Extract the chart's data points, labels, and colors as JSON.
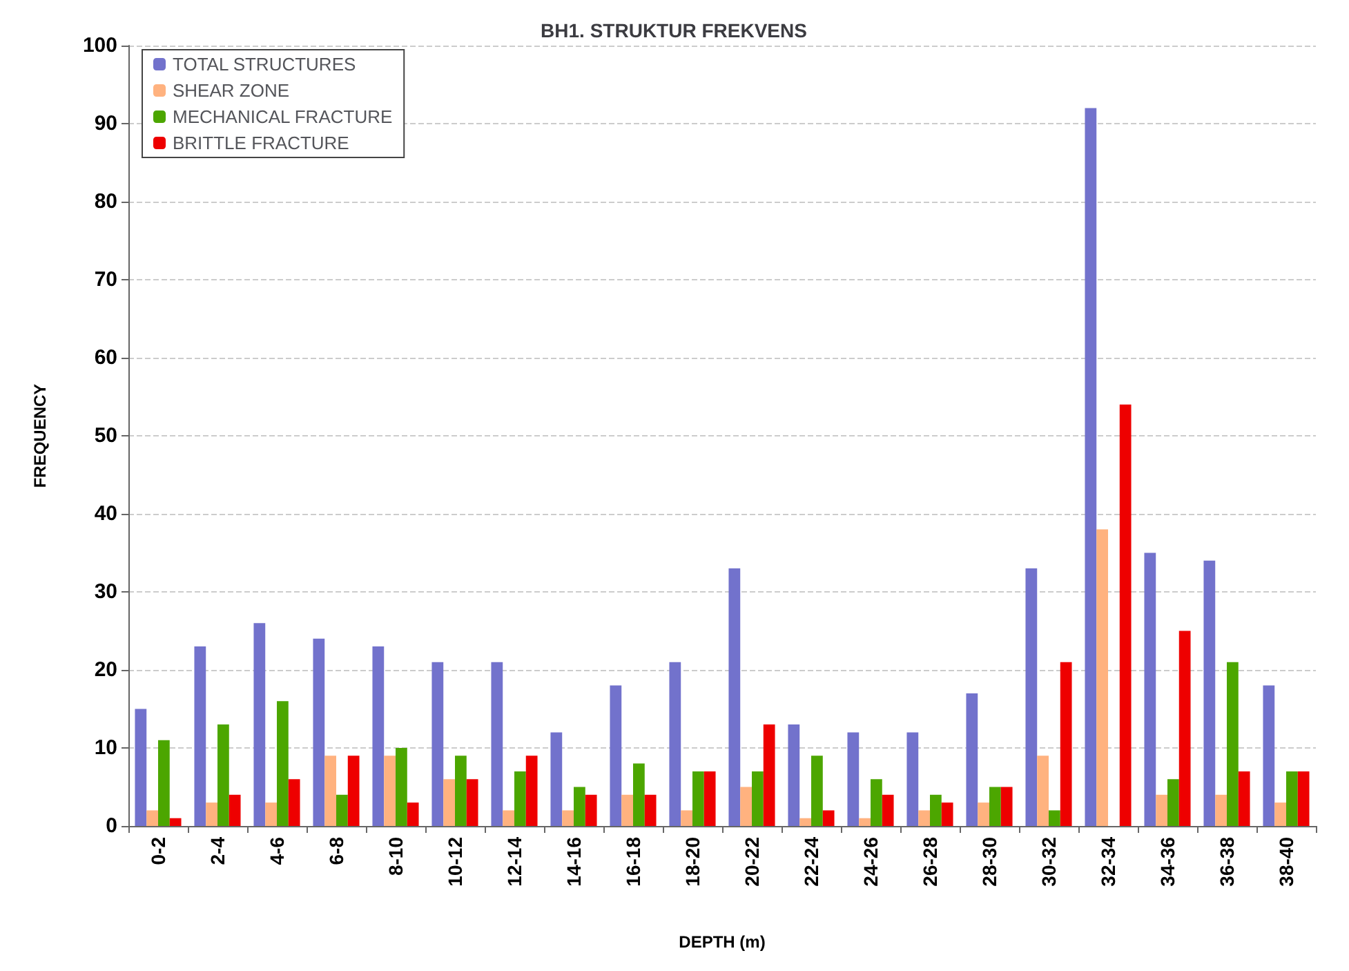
{
  "chart_data": {
    "type": "bar",
    "title": "BH1. STRUKTUR FREKVENS",
    "xlabel": "DEPTH (m)",
    "ylabel": "FREQUENCY",
    "categories": [
      "0-2",
      "2-4",
      "4-6",
      "6-8",
      "8-10",
      "10-12",
      "12-14",
      "14-16",
      "16-18",
      "18-20",
      "20-22",
      "22-24",
      "24-26",
      "26-28",
      "28-30",
      "30-32",
      "32-34",
      "34-36",
      "36-38",
      "38-40"
    ],
    "series": [
      {
        "name": "TOTAL STRUCTURES",
        "color": "#7272cc",
        "values": [
          15,
          23,
          26,
          24,
          23,
          21,
          21,
          12,
          18,
          21,
          33,
          13,
          12,
          12,
          17,
          33,
          92,
          35,
          34,
          18
        ]
      },
      {
        "name": "SHEAR ZONE",
        "color": "#ffb27f",
        "values": [
          2,
          3,
          3,
          9,
          9,
          6,
          2,
          2,
          4,
          2,
          5,
          1,
          1,
          2,
          3,
          9,
          38,
          4,
          4,
          3
        ]
      },
      {
        "name": "MECHANICAL FRACTURE",
        "color": "#4ca600",
        "values": [
          11,
          13,
          16,
          4,
          10,
          9,
          7,
          5,
          8,
          7,
          7,
          9,
          6,
          4,
          5,
          2,
          0,
          6,
          21,
          7
        ]
      },
      {
        "name": "BRITTLE FRACTURE",
        "color": "#ee0000",
        "values": [
          1,
          4,
          6,
          9,
          3,
          6,
          9,
          4,
          4,
          7,
          13,
          2,
          4,
          3,
          5,
          21,
          54,
          25,
          7,
          7
        ]
      }
    ],
    "ylim": [
      0,
      100
    ],
    "yticks": [
      0,
      10,
      20,
      30,
      40,
      50,
      60,
      70,
      80,
      90,
      100
    ],
    "grid": "y",
    "legend": "top left"
  }
}
